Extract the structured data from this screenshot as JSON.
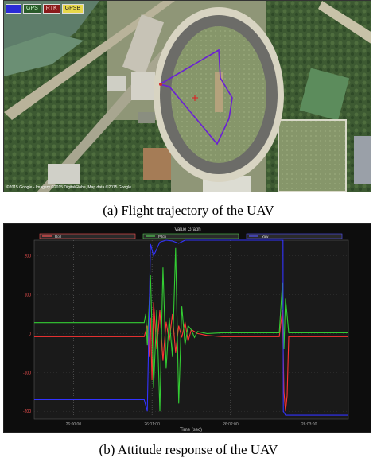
{
  "figure_a": {
    "caption": "(a) Flight trajectory of the UAV",
    "legend": [
      {
        "label": "",
        "color": "#2a2ad6"
      },
      {
        "label": "GPS",
        "color": "#2a8a2a"
      },
      {
        "label": "RTK",
        "color": "#d62a2a"
      },
      {
        "label": "GPSB",
        "color": "#e8d84a"
      }
    ],
    "trajectory_color": "#6a1fd6",
    "attribution": "©2015 Google - Imagery ©2015 DigitalGlobe, Map data ©2015 Google"
  },
  "figure_b": {
    "caption": "(b) Attitude response of the UAV",
    "window_title": "Value Graph",
    "xlabel": "Time (sec)",
    "legend": [
      {
        "label": "Roll",
        "color": "#ff5555"
      },
      {
        "label": "Pitch",
        "color": "#55cc55"
      },
      {
        "label": "Yaw",
        "color": "#5555ff"
      }
    ],
    "x_ticks": [
      "26:00:00",
      "26:01:00",
      "26:02:00",
      "26:03:00"
    ],
    "y_ticks": [
      "200",
      "100",
      "0",
      "-100",
      "-200"
    ],
    "chart_data": {
      "type": "line",
      "xlabel": "Time (sec)",
      "ylabel": "",
      "xlim": [
        0,
        100
      ],
      "ylim": [
        -220,
        240
      ],
      "series": [
        {
          "name": "Roll",
          "color": "#ff3333",
          "x": [
            0,
            35,
            36,
            36.5,
            37,
            37.5,
            38,
            39,
            40,
            41,
            42,
            43,
            44,
            45,
            46,
            47,
            48,
            49,
            50,
            52,
            55,
            60,
            70,
            78,
            79,
            79.5,
            80,
            80.5,
            81,
            100
          ],
          "y": [
            -8,
            -8,
            20,
            -60,
            40,
            -120,
            80,
            -40,
            60,
            -70,
            30,
            -20,
            50,
            -50,
            20,
            -10,
            30,
            -20,
            10,
            0,
            -5,
            -8,
            -8,
            -8,
            60,
            -150,
            -200,
            -160,
            -8,
            -8
          ]
        },
        {
          "name": "Pitch",
          "color": "#33cc33",
          "x": [
            0,
            35,
            35.5,
            36,
            37,
            38,
            39,
            40,
            41,
            42,
            43,
            44,
            45,
            46,
            47,
            48,
            49,
            50,
            51,
            52,
            55,
            60,
            70,
            78,
            79,
            79.5,
            80,
            81,
            100
          ],
          "y": [
            28,
            28,
            50,
            -30,
            150,
            -140,
            60,
            -200,
            170,
            -90,
            40,
            -60,
            220,
            -180,
            70,
            -30,
            20,
            10,
            -10,
            5,
            0,
            2,
            2,
            2,
            130,
            -40,
            90,
            2,
            2
          ]
        },
        {
          "name": "Yaw",
          "color": "#3333ff",
          "x": [
            0,
            34.9,
            35,
            36,
            37,
            38,
            40,
            42,
            44,
            46,
            48,
            50,
            60,
            70,
            79.2,
            79.3,
            80,
            100
          ],
          "y": [
            -170,
            -170,
            -170,
            -200,
            230,
            200,
            235,
            240,
            238,
            232,
            240,
            240,
            240,
            240,
            240,
            -200,
            -210,
            -210
          ]
        }
      ]
    }
  }
}
